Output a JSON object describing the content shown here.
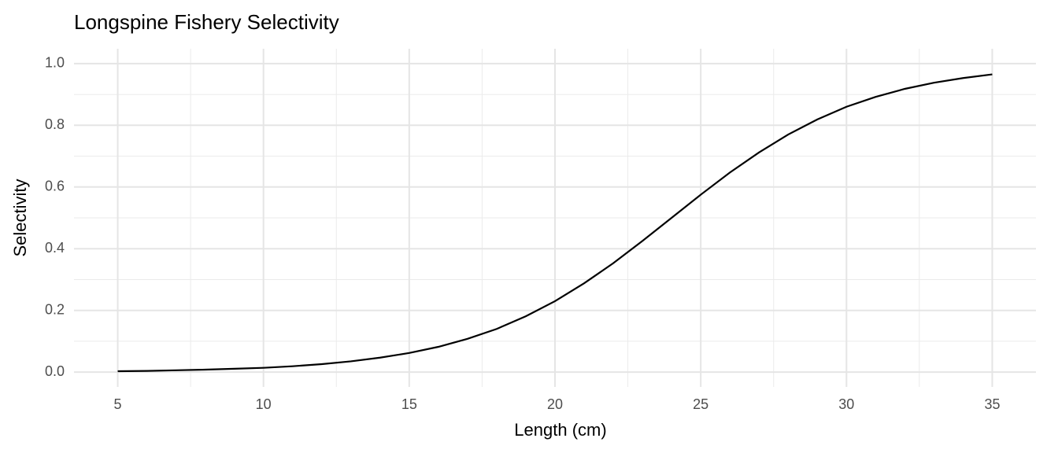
{
  "chart_data": {
    "type": "line",
    "title": "Longspine Fishery Selectivity",
    "x_label": "Length (cm)",
    "y_label": "Selectivity",
    "x": [
      5,
      6,
      7,
      8,
      9,
      10,
      11,
      12,
      13,
      14,
      15,
      16,
      17,
      18,
      19,
      20,
      21,
      22,
      23,
      24,
      25,
      26,
      27,
      28,
      29,
      30,
      31,
      32,
      33,
      34,
      35
    ],
    "values": [
      0.003,
      0.004,
      0.006,
      0.008,
      0.011,
      0.014,
      0.019,
      0.026,
      0.035,
      0.047,
      0.062,
      0.082,
      0.108,
      0.14,
      0.181,
      0.23,
      0.288,
      0.353,
      0.425,
      0.5,
      0.575,
      0.647,
      0.712,
      0.77,
      0.819,
      0.86,
      0.892,
      0.918,
      0.938,
      0.953,
      0.965
    ],
    "color": "#000000",
    "xlim": [
      3.5,
      36.5
    ],
    "xticks": [
      5,
      10,
      15,
      20,
      25,
      30,
      35
    ],
    "x_minor_ticks": [
      7.5,
      12.5,
      17.5,
      22.5,
      27.5,
      32.5
    ],
    "ylim": [
      -0.048,
      1.048
    ],
    "yticks": [
      {
        "value": 0,
        "label": "0.0"
      },
      0.2,
      0.4,
      0.6,
      0.8,
      {
        "value": 1,
        "label": "1.0"
      }
    ],
    "y_minor_ticks": [
      0.1,
      0.3,
      0.5,
      0.7,
      0.9
    ],
    "grid": true
  }
}
